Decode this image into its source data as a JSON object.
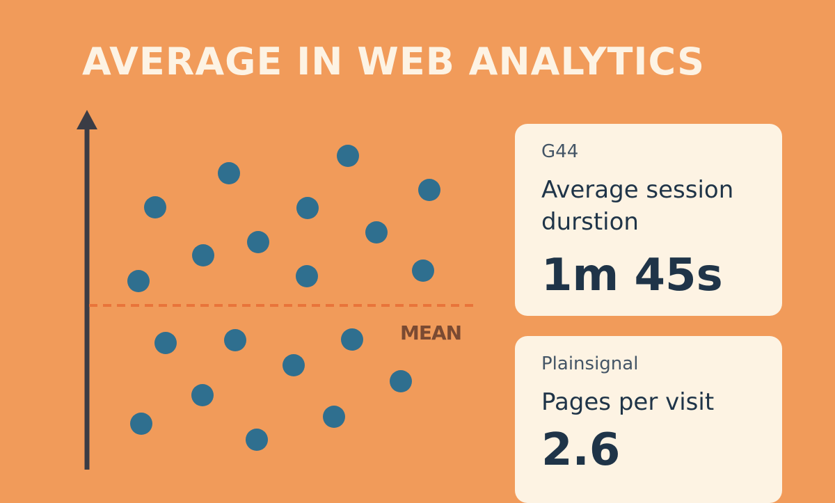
{
  "header": {
    "title": "AVERAGE IN WEB ANALYTICS"
  },
  "illustration": {
    "mean_label": "MEAN",
    "colors": {
      "background": "#f19b5a",
      "dot": "#2f6f8f",
      "axis": "#3a3c45",
      "mean_line": "#e8743a"
    }
  },
  "cards": [
    {
      "source": "G44",
      "metric": "Average session durstion",
      "value": "1m 45s"
    },
    {
      "source": "Plainsignal",
      "metric": "Pages per visit",
      "value": "2.6"
    }
  ]
}
